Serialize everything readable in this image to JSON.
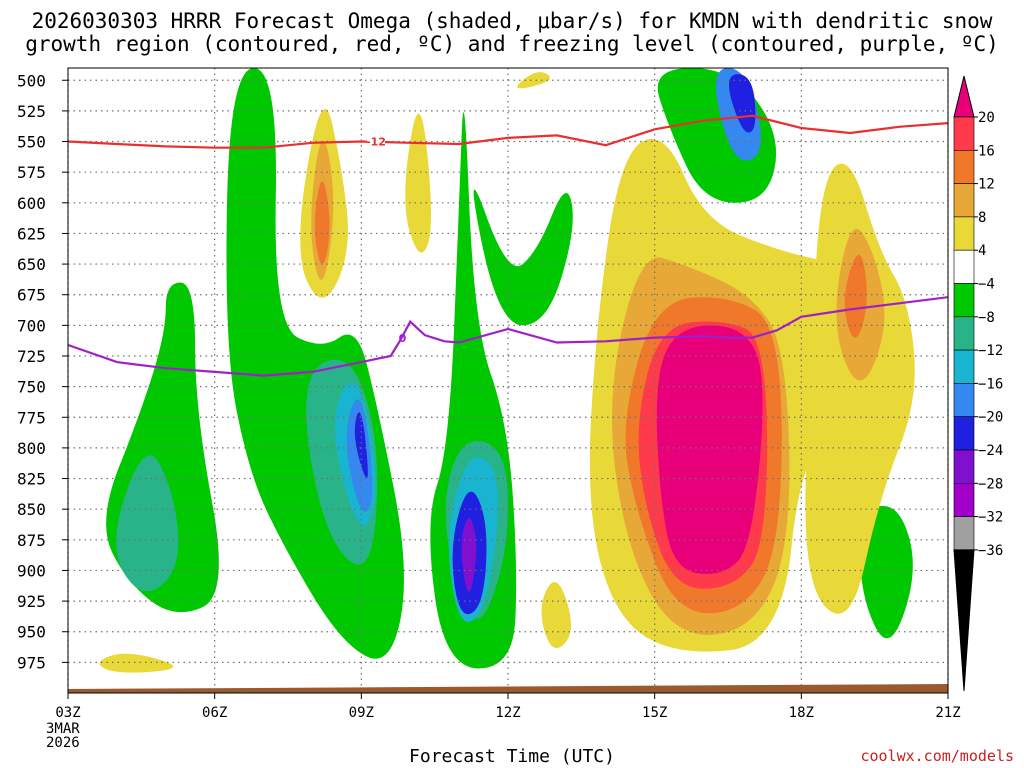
{
  "chart_data": {
    "type": "heatmap",
    "title_line1": "2026030303 HRRR Forecast Omega (shaded, μbar/s) for KMDN with dendritic snow",
    "title_line2": "growth region (contoured, red, ºC) and freezing level (contoured, purple, ºC)",
    "xlabel": "Forecast Time (UTC)",
    "date_label": [
      "3MAR",
      "2026"
    ],
    "x_ticks": [
      "03Z",
      "06Z",
      "09Z",
      "12Z",
      "15Z",
      "18Z",
      "21Z"
    ],
    "x_hours": [
      3,
      6,
      9,
      12,
      15,
      18,
      21
    ],
    "y_ticks": [
      500,
      525,
      550,
      575,
      600,
      625,
      650,
      675,
      700,
      725,
      750,
      775,
      800,
      825,
      850,
      875,
      900,
      925,
      950,
      975
    ],
    "ylim": [
      490,
      1000
    ],
    "xlim": [
      3,
      21
    ],
    "colorbar": {
      "labels": [
        "20",
        "16",
        "12",
        "8",
        "4",
        "−4",
        "−8",
        "−12",
        "−16",
        "−20",
        "−24",
        "−28",
        "−32",
        "−36"
      ],
      "colors": [
        "#e8007a",
        "#ff3a4a",
        "#f0782a",
        "#e8a838",
        "#e8d838",
        "#ffffff",
        "#00c800",
        "#28b488",
        "#18b4d0",
        "#3488f0",
        "#2020e0",
        "#8010d0",
        "#a000c8",
        "#a0a0a0"
      ],
      "top_triangle": "#e8007a",
      "bottom_triangle": "#000000"
    },
    "shading_legend": [
      {
        "level": "4",
        "color": "#e8d838"
      },
      {
        "level": "8",
        "color": "#e8a838"
      },
      {
        "level": "12",
        "color": "#f0782a"
      },
      {
        "level": "16",
        "color": "#ff3a4a"
      },
      {
        "level": "20",
        "color": "#e8007a"
      },
      {
        "level": "-4",
        "color": "#00c800"
      },
      {
        "level": "-8",
        "color": "#28b488"
      },
      {
        "level": "-12",
        "color": "#18b4d0"
      },
      {
        "level": "-16",
        "color": "#3488f0"
      },
      {
        "level": "-20",
        "color": "#2020e0"
      },
      {
        "level": "-24",
        "color": "#8010d0"
      },
      {
        "level": "-28",
        "color": "#a000c8"
      }
    ],
    "dgz_contour": {
      "label": "-12",
      "color": "#e83030",
      "points": [
        [
          3,
          550
        ],
        [
          4,
          552
        ],
        [
          5,
          554
        ],
        [
          6,
          555
        ],
        [
          7,
          555
        ],
        [
          8,
          551
        ],
        [
          9,
          550
        ],
        [
          10,
          551
        ],
        [
          11,
          552
        ],
        [
          12,
          547
        ],
        [
          13,
          545
        ],
        [
          14,
          553
        ],
        [
          15,
          540
        ],
        [
          16,
          533
        ],
        [
          17,
          529
        ],
        [
          18,
          539
        ],
        [
          19,
          543
        ],
        [
          20,
          538
        ],
        [
          21,
          535
        ]
      ]
    },
    "freezing_level": {
      "label": "0",
      "color": "#a020c8",
      "points": [
        [
          3,
          716
        ],
        [
          4,
          730
        ],
        [
          5,
          735
        ],
        [
          6,
          738
        ],
        [
          7,
          741
        ],
        [
          8,
          738
        ],
        [
          9,
          730
        ],
        [
          9.6,
          725
        ],
        [
          9.8,
          712
        ],
        [
          10,
          697
        ],
        [
          10.3,
          708
        ],
        [
          10.7,
          713
        ],
        [
          11,
          714
        ],
        [
          12,
          703
        ],
        [
          13,
          714
        ],
        [
          14,
          713
        ],
        [
          15,
          710
        ],
        [
          16,
          709
        ],
        [
          16.5,
          710
        ],
        [
          17,
          710
        ],
        [
          17.5,
          704
        ],
        [
          18,
          693
        ],
        [
          19,
          687
        ],
        [
          20,
          682
        ],
        [
          21,
          677
        ]
      ]
    },
    "omega_features": [
      {
        "value": "-4",
        "color": "#00c800",
        "pts": [
          [
            3.6,
            860
          ],
          [
            4.5,
            770
          ],
          [
            5.0,
            705
          ],
          [
            5.0,
            665
          ],
          [
            5.6,
            665
          ],
          [
            5.6,
            770
          ],
          [
            6.3,
            920
          ],
          [
            5.2,
            940
          ],
          [
            4.2,
            910
          ]
        ]
      },
      {
        "value": "-4",
        "color": "#00c800",
        "pts": [
          [
            6.2,
            720
          ],
          [
            6.3,
            490
          ],
          [
            7.3,
            490
          ],
          [
            7.2,
            700
          ],
          [
            8.2,
            720
          ],
          [
            8.9,
            700
          ],
          [
            9.3,
            760
          ],
          [
            10.0,
            900
          ],
          [
            9.6,
            980
          ],
          [
            8.6,
            960
          ],
          [
            7.4,
            880
          ],
          [
            6.7,
            820
          ]
        ]
      },
      {
        "value": "-8",
        "color": "#28b488",
        "pts": [
          [
            3.8,
            880
          ],
          [
            4.6,
            790
          ],
          [
            5.2,
            840
          ],
          [
            5.3,
            900
          ],
          [
            4.5,
            925
          ]
        ]
      },
      {
        "value": "-8",
        "color": "#28b488",
        "pts": [
          [
            7.7,
            740
          ],
          [
            8.8,
            720
          ],
          [
            9.4,
            800
          ],
          [
            9.2,
            910
          ],
          [
            8.2,
            870
          ]
        ]
      },
      {
        "value": "-12",
        "color": "#18b4d0",
        "pts": [
          [
            8.3,
            780
          ],
          [
            8.9,
            730
          ],
          [
            9.4,
            830
          ],
          [
            9.0,
            880
          ]
        ]
      },
      {
        "value": "-16",
        "color": "#3488f0",
        "pts": [
          [
            8.6,
            790
          ],
          [
            9.0,
            745
          ],
          [
            9.3,
            840
          ],
          [
            9.0,
            860
          ]
        ]
      },
      {
        "value": "-20",
        "color": "#2020e0",
        "pts": [
          [
            8.8,
            790
          ],
          [
            9.0,
            760
          ],
          [
            9.2,
            840
          ]
        ]
      },
      {
        "value": "-4",
        "color": "#00c800",
        "pts": [
          [
            10.3,
            860
          ],
          [
            10.8,
            800
          ],
          [
            11.0,
            600
          ],
          [
            11.1,
            490
          ],
          [
            11.3,
            700
          ],
          [
            12.0,
            780
          ],
          [
            12.2,
            900
          ],
          [
            12.1,
            980
          ],
          [
            10.7,
            980
          ]
        ]
      },
      {
        "value": "-4",
        "color": "#00c800",
        "pts": [
          [
            11.1,
            560
          ],
          [
            12.0,
            660
          ],
          [
            12.6,
            640
          ],
          [
            13.2,
            580
          ],
          [
            13.4,
            620
          ],
          [
            12.8,
            700
          ],
          [
            11.8,
            700
          ]
        ]
      },
      {
        "value": "-8",
        "color": "#28b488",
        "pts": [
          [
            10.6,
            860
          ],
          [
            11.0,
            790
          ],
          [
            12.0,
            800
          ],
          [
            12.0,
            890
          ],
          [
            11.3,
            960
          ]
        ]
      },
      {
        "value": "-12",
        "color": "#18b4d0",
        "pts": [
          [
            10.7,
            870
          ],
          [
            11.2,
            800
          ],
          [
            11.9,
            820
          ],
          [
            11.6,
            930
          ],
          [
            11.0,
            950
          ]
        ]
      },
      {
        "value": "-20",
        "color": "#2020e0",
        "pts": [
          [
            10.8,
            880
          ],
          [
            11.2,
            825
          ],
          [
            11.6,
            860
          ],
          [
            11.5,
            930
          ],
          [
            11.0,
            940
          ]
        ]
      },
      {
        "value": "-24",
        "color": "#8010d0",
        "pts": [
          [
            11.0,
            880
          ],
          [
            11.2,
            850
          ],
          [
            11.4,
            880
          ],
          [
            11.2,
            930
          ]
        ]
      },
      {
        "value": "-4",
        "color": "#00c800",
        "pts": [
          [
            14.9,
            490
          ],
          [
            16.6,
            490
          ],
          [
            17.6,
            545
          ],
          [
            17.3,
            600
          ],
          [
            16.0,
            600
          ],
          [
            15.3,
            540
          ]
        ]
      },
      {
        "value": "-16",
        "color": "#3488f0",
        "pts": [
          [
            16.1,
            490
          ],
          [
            16.9,
            490
          ],
          [
            17.3,
            560
          ],
          [
            16.6,
            570
          ]
        ]
      },
      {
        "value": "-20",
        "color": "#2020e0",
        "pts": [
          [
            16.4,
            495
          ],
          [
            17.0,
            495
          ],
          [
            17.1,
            540
          ],
          [
            16.8,
            545
          ]
        ]
      },
      {
        "value": "-4",
        "color": "#00c800",
        "pts": [
          [
            19.2,
            850
          ],
          [
            20.0,
            845
          ],
          [
            20.4,
            900
          ],
          [
            19.8,
            970
          ],
          [
            19.2,
            920
          ]
        ]
      },
      {
        "value": "4",
        "color": "#e8d838",
        "pts": [
          [
            13.8,
            700
          ],
          [
            14.3,
            560
          ],
          [
            15.2,
            540
          ],
          [
            16.0,
            615
          ],
          [
            17.6,
            640
          ],
          [
            18.8,
            650
          ],
          [
            19.0,
            660
          ],
          [
            19.6,
            690
          ],
          [
            19.4,
            760
          ],
          [
            18.0,
            800
          ],
          [
            17.6,
            960
          ],
          [
            15.5,
            970
          ],
          [
            14.2,
            940
          ],
          [
            13.6,
            850
          ]
        ]
      },
      {
        "value": "8",
        "color": "#e8a838",
        "pts": [
          [
            14.0,
            760
          ],
          [
            14.7,
            640
          ],
          [
            15.6,
            650
          ],
          [
            17.0,
            675
          ],
          [
            17.7,
            720
          ],
          [
            17.8,
            880
          ],
          [
            17.0,
            950
          ],
          [
            15.4,
            955
          ],
          [
            14.4,
            880
          ]
        ]
      },
      {
        "value": "12",
        "color": "#f0782a",
        "pts": [
          [
            14.3,
            780
          ],
          [
            15.0,
            680
          ],
          [
            16.5,
            675
          ],
          [
            17.6,
            700
          ],
          [
            17.6,
            880
          ],
          [
            16.8,
            935
          ],
          [
            15.4,
            935
          ],
          [
            14.6,
            850
          ]
        ]
      },
      {
        "value": "16",
        "color": "#ff3a4a",
        "pts": [
          [
            14.6,
            780
          ],
          [
            15.1,
            700
          ],
          [
            16.4,
            695
          ],
          [
            17.3,
            710
          ],
          [
            17.3,
            880
          ],
          [
            16.6,
            915
          ],
          [
            15.4,
            915
          ],
          [
            14.8,
            850
          ]
        ]
      },
      {
        "value": "20",
        "color": "#e8007a",
        "pts": [
          [
            15.0,
            740
          ],
          [
            15.5,
            700
          ],
          [
            16.8,
            700
          ],
          [
            17.3,
            740
          ],
          [
            17.0,
            880
          ],
          [
            16.4,
            905
          ],
          [
            15.4,
            900
          ],
          [
            15.1,
            840
          ]
        ]
      },
      {
        "value": "4",
        "color": "#e8d838",
        "pts": [
          [
            18.2,
            720
          ],
          [
            18.4,
            580
          ],
          [
            19.0,
            560
          ],
          [
            19.6,
            640
          ],
          [
            20.2,
            680
          ],
          [
            20.4,
            760
          ],
          [
            19.6,
            840
          ],
          [
            19.0,
            950
          ],
          [
            18.0,
            910
          ]
        ]
      },
      {
        "value": "8",
        "color": "#e8a838",
        "pts": [
          [
            18.6,
            700
          ],
          [
            19.0,
            610
          ],
          [
            19.5,
            640
          ],
          [
            19.8,
            700
          ],
          [
            19.2,
            760
          ]
        ]
      },
      {
        "value": "12",
        "color": "#f0782a",
        "pts": [
          [
            18.8,
            680
          ],
          [
            19.2,
            630
          ],
          [
            19.4,
            680
          ],
          [
            19.1,
            720
          ]
        ]
      },
      {
        "value": "4",
        "color": "#e8d838",
        "pts": [
          [
            7.6,
            640
          ],
          [
            8.2,
            500
          ],
          [
            8.6,
            570
          ],
          [
            8.8,
            640
          ],
          [
            8.2,
            690
          ]
        ]
      },
      {
        "value": "8",
        "color": "#e8a838",
        "pts": [
          [
            7.9,
            620
          ],
          [
            8.2,
            530
          ],
          [
            8.5,
            600
          ],
          [
            8.2,
            680
          ]
        ]
      },
      {
        "value": "12",
        "color": "#f0782a",
        "pts": [
          [
            8.0,
            620
          ],
          [
            8.2,
            570
          ],
          [
            8.4,
            620
          ],
          [
            8.2,
            660
          ]
        ]
      },
      {
        "value": "4",
        "color": "#e8d838",
        "pts": [
          [
            9.8,
            600
          ],
          [
            10.2,
            500
          ],
          [
            10.5,
            620
          ],
          [
            10.2,
            650
          ]
        ]
      },
      {
        "value": "4",
        "color": "#e8d838",
        "pts": [
          [
            12.0,
            510
          ],
          [
            12.6,
            490
          ],
          [
            13.0,
            500
          ]
        ]
      },
      {
        "value": "4",
        "color": "#e8d838",
        "pts": [
          [
            12.6,
            930
          ],
          [
            13.0,
            900
          ],
          [
            13.4,
            950
          ],
          [
            12.9,
            970
          ]
        ]
      },
      {
        "value": "4",
        "color": "#e8d838",
        "pts": [
          [
            3.5,
            975
          ],
          [
            4.2,
            965
          ],
          [
            5.5,
            980
          ],
          [
            4.0,
            985
          ]
        ]
      }
    ]
  },
  "watermark": "coolwx.com/models"
}
